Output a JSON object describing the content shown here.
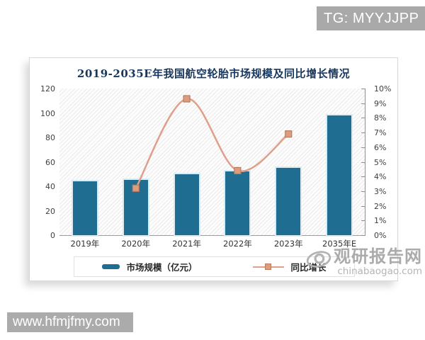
{
  "page": {
    "tag_label": "TG: MYYJJPP",
    "footer_url": "www.hfmjfmy.com"
  },
  "watermark": {
    "site_name": "观研报告网",
    "site_domain": "chinabaogao.com"
  },
  "chart_data": {
    "type": "bar+line combo",
    "title": "2019-2035E年我国航空轮胎市场规模及同比增长情况",
    "categories": [
      "2019年",
      "2020年",
      "2021年",
      "2022年",
      "2023年",
      "2035年E"
    ],
    "series": [
      {
        "name": "市场规模（亿元）",
        "type": "bar",
        "axis": "left",
        "values": [
          44,
          45,
          50,
          52,
          55,
          98
        ],
        "color": "#1f6e91"
      },
      {
        "name": "同比增长",
        "type": "line",
        "axis": "right",
        "values": [
          null,
          3.2,
          9.3,
          4.4,
          6.9,
          null
        ],
        "color": "#dfa08b",
        "marker": "square",
        "marker_fill": "#dd9c7d",
        "marker_stroke": "#b87c5f"
      }
    ],
    "left_axis": {
      "min": 0,
      "max": 120,
      "step": 20,
      "ticks": [
        "0",
        "20",
        "40",
        "60",
        "80",
        "100",
        "120"
      ]
    },
    "right_axis": {
      "min": 0,
      "max": 10,
      "step": 1,
      "ticks": [
        "0%",
        "1%",
        "2%",
        "3%",
        "4%",
        "5%",
        "6%",
        "7%",
        "8%",
        "9%",
        "10%"
      ]
    },
    "legend_position": "bottom",
    "grid": false,
    "plot_background": "diagonal-hatch",
    "title_color": "#17375e"
  }
}
